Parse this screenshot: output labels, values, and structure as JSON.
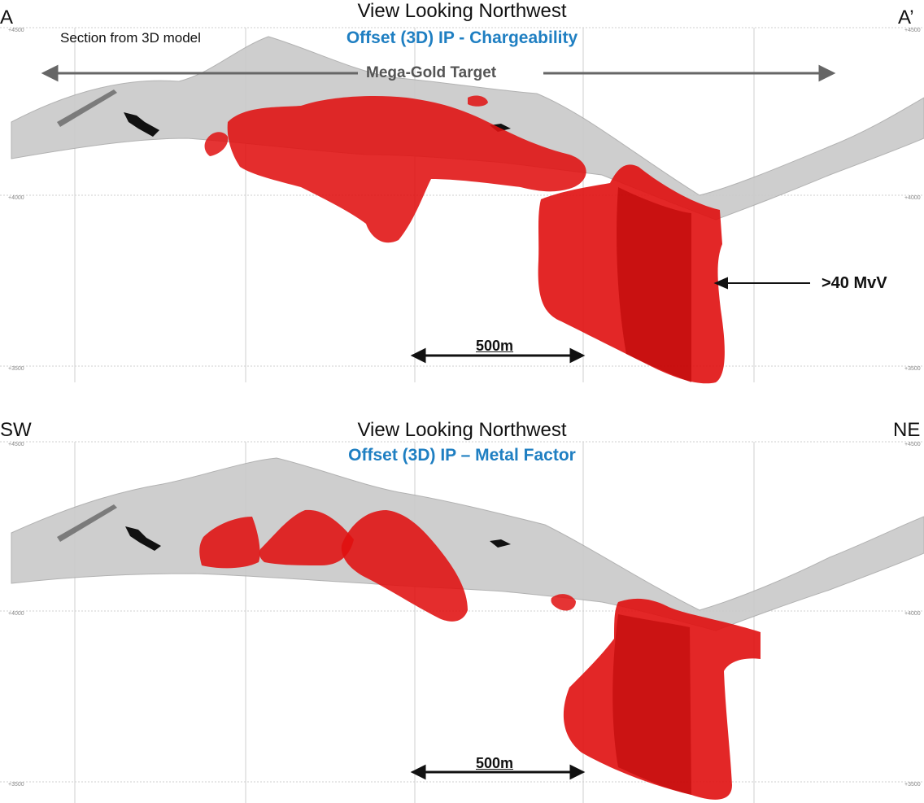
{
  "colors": {
    "terrain": "#c9c9c9",
    "body": "#e01010",
    "body_dark": "#a80000",
    "title_blue": "#1f7fc2",
    "arrow_gray": "#666666"
  },
  "top_panel": {
    "left_corner": "A",
    "right_corner": "A’",
    "view_title": "View Looking Northwest",
    "subtitle": "Offset (3D) IP - Chargeability",
    "note": "Section from 3D model",
    "target_label": "Mega-Gold Target",
    "annotation": ">40 MvV",
    "scale_label": "500m",
    "elevation_ticks": [
      "+4500",
      "+4000",
      "+3500"
    ],
    "right_ticks": [
      "+4500",
      "+4000",
      "+3500"
    ]
  },
  "bottom_panel": {
    "left_corner": "SW",
    "right_corner": "NE",
    "view_title": "View Looking Northwest",
    "subtitle": "Offset (3D) IP – Metal Factor",
    "scale_label": "500m",
    "elevation_ticks": [
      "+4500",
      "+4000",
      "+3500"
    ],
    "right_ticks": [
      "+4500",
      "+4000",
      "+3500"
    ]
  }
}
